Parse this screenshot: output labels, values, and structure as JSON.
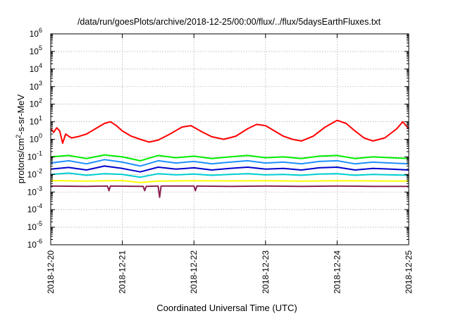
{
  "chart_data": {
    "type": "line",
    "title": "/data/run/goesPlots/archive/2018-12-25/00:00/flux/../flux/5daysEarthFluxes.txt",
    "xlabel": "Coordinated Universal Time (UTC)",
    "ylabel": {
      "base": "protons/cm",
      "sup": "2",
      "rest": "-s-sr-MeV"
    },
    "yscale": "log",
    "ylim": [
      1e-06,
      1000000.0
    ],
    "y_ticks": [
      {
        "value": 1e-06,
        "base": "10",
        "exp": "-6"
      },
      {
        "value": 1e-05,
        "base": "10",
        "exp": "-5"
      },
      {
        "value": 0.0001,
        "base": "10",
        "exp": "-4"
      },
      {
        "value": 0.001,
        "base": "10",
        "exp": "-3"
      },
      {
        "value": 0.01,
        "base": "10",
        "exp": "-2"
      },
      {
        "value": 0.1,
        "base": "10",
        "exp": "-1"
      },
      {
        "value": 1,
        "base": "10",
        "exp": "0"
      },
      {
        "value": 10,
        "base": "10",
        "exp": "1"
      },
      {
        "value": 100,
        "base": "10",
        "exp": "2"
      },
      {
        "value": 1000,
        "base": "10",
        "exp": "3"
      },
      {
        "value": 10000,
        "base": "10",
        "exp": "4"
      },
      {
        "value": 100000,
        "base": "10",
        "exp": "5"
      },
      {
        "value": 1000000,
        "base": "10",
        "exp": "6"
      }
    ],
    "xlim": [
      "2018-12-20",
      "2018-12-25"
    ],
    "x_ticks": [
      "2018-12-20",
      "2018-12-21",
      "2018-12-22",
      "2018-12-23",
      "2018-12-24",
      "2018-12-25"
    ],
    "grid": true,
    "series": [
      {
        "color": "#ff0000",
        "x": [
          "2018-12-20T00:00",
          "2018-12-20T01:00",
          "2018-12-20T02:00",
          "2018-12-20T03:00",
          "2018-12-20T04:00",
          "2018-12-20T05:00",
          "2018-12-20T06:00",
          "2018-12-20T07:00",
          "2018-12-20T09:00",
          "2018-12-20T12:00",
          "2018-12-20T15:00",
          "2018-12-20T18:00",
          "2018-12-20T20:00",
          "2018-12-20T22:00",
          "2018-12-21T00:00",
          "2018-12-21T03:00",
          "2018-12-21T06:00",
          "2018-12-21T09:00",
          "2018-12-21T12:00",
          "2018-12-21T16:00",
          "2018-12-21T20:00",
          "2018-12-21T23:00",
          "2018-12-22T03:00",
          "2018-12-22T06:00",
          "2018-12-22T10:00",
          "2018-12-22T14:00",
          "2018-12-22T18:00",
          "2018-12-22T21:00",
          "2018-12-23T00:00",
          "2018-12-23T03:00",
          "2018-12-23T06:00",
          "2018-12-23T09:00",
          "2018-12-23T12:00",
          "2018-12-23T16:00",
          "2018-12-23T20:00",
          "2018-12-24T00:00",
          "2018-12-24T03:00",
          "2018-12-24T06:00",
          "2018-12-24T09:00",
          "2018-12-24T12:00",
          "2018-12-24T16:00",
          "2018-12-24T20:00",
          "2018-12-24T22:00",
          "2018-12-25T00:00"
        ],
        "values": [
          4,
          2.5,
          4.5,
          3,
          0.6,
          2,
          1.5,
          1.2,
          1.4,
          2,
          4,
          8,
          10,
          6,
          3,
          1.5,
          1,
          0.7,
          0.9,
          2,
          5,
          6,
          2.5,
          1.4,
          1,
          1.5,
          4,
          7,
          6,
          3,
          1.5,
          1,
          0.8,
          1.5,
          5,
          12,
          8,
          3,
          1.2,
          0.8,
          1.2,
          4,
          10,
          4
        ]
      },
      {
        "color": "#00ee00",
        "x": [
          "2018-12-20T00:00",
          "2018-12-20T06:00",
          "2018-12-20T12:00",
          "2018-12-20T18:00",
          "2018-12-21T00:00",
          "2018-12-21T06:00",
          "2018-12-21T12:00",
          "2018-12-21T18:00",
          "2018-12-22T00:00",
          "2018-12-22T06:00",
          "2018-12-22T12:00",
          "2018-12-22T18:00",
          "2018-12-23T00:00",
          "2018-12-23T06:00",
          "2018-12-23T12:00",
          "2018-12-23T18:00",
          "2018-12-24T00:00",
          "2018-12-24T06:00",
          "2018-12-24T12:00",
          "2018-12-24T18:00",
          "2018-12-25T00:00"
        ],
        "values": [
          0.1,
          0.12,
          0.08,
          0.13,
          0.1,
          0.06,
          0.12,
          0.09,
          0.11,
          0.08,
          0.1,
          0.12,
          0.09,
          0.1,
          0.08,
          0.11,
          0.12,
          0.08,
          0.1,
          0.09,
          0.08
        ]
      },
      {
        "color": "#1e90ff",
        "x": [
          "2018-12-20T00:00",
          "2018-12-20T06:00",
          "2018-12-20T12:00",
          "2018-12-20T18:00",
          "2018-12-21T00:00",
          "2018-12-21T06:00",
          "2018-12-21T12:00",
          "2018-12-21T18:00",
          "2018-12-22T00:00",
          "2018-12-22T06:00",
          "2018-12-22T12:00",
          "2018-12-22T18:00",
          "2018-12-23T00:00",
          "2018-12-23T06:00",
          "2018-12-23T12:00",
          "2018-12-23T18:00",
          "2018-12-24T00:00",
          "2018-12-24T06:00",
          "2018-12-24T12:00",
          "2018-12-24T18:00",
          "2018-12-25T00:00"
        ],
        "values": [
          0.045,
          0.06,
          0.04,
          0.07,
          0.05,
          0.03,
          0.06,
          0.045,
          0.055,
          0.04,
          0.05,
          0.06,
          0.045,
          0.05,
          0.04,
          0.055,
          0.06,
          0.04,
          0.05,
          0.045,
          0.04
        ]
      },
      {
        "color": "#0000cd",
        "x": [
          "2018-12-20T00:00",
          "2018-12-20T06:00",
          "2018-12-20T12:00",
          "2018-12-20T18:00",
          "2018-12-21T00:00",
          "2018-12-21T06:00",
          "2018-12-21T12:00",
          "2018-12-21T18:00",
          "2018-12-22T00:00",
          "2018-12-22T06:00",
          "2018-12-22T12:00",
          "2018-12-22T18:00",
          "2018-12-23T00:00",
          "2018-12-23T06:00",
          "2018-12-23T12:00",
          "2018-12-23T18:00",
          "2018-12-24T00:00",
          "2018-12-24T06:00",
          "2018-12-24T12:00",
          "2018-12-24T18:00",
          "2018-12-25T00:00"
        ],
        "values": [
          0.02,
          0.025,
          0.018,
          0.03,
          0.022,
          0.014,
          0.026,
          0.02,
          0.024,
          0.018,
          0.022,
          0.026,
          0.02,
          0.022,
          0.018,
          0.024,
          0.026,
          0.018,
          0.022,
          0.02,
          0.018
        ]
      },
      {
        "color": "#00ced1",
        "x": [
          "2018-12-20T00:00",
          "2018-12-20T06:00",
          "2018-12-20T12:00",
          "2018-12-20T18:00",
          "2018-12-21T00:00",
          "2018-12-21T06:00",
          "2018-12-21T12:00",
          "2018-12-21T18:00",
          "2018-12-22T00:00",
          "2018-12-22T06:00",
          "2018-12-22T12:00",
          "2018-12-22T18:00",
          "2018-12-23T00:00",
          "2018-12-23T06:00",
          "2018-12-23T12:00",
          "2018-12-23T18:00",
          "2018-12-24T00:00",
          "2018-12-24T06:00",
          "2018-12-24T12:00",
          "2018-12-24T18:00",
          "2018-12-25T00:00"
        ],
        "values": [
          0.01,
          0.012,
          0.009,
          0.011,
          0.01,
          0.007,
          0.011,
          0.0095,
          0.0105,
          0.009,
          0.01,
          0.011,
          0.0095,
          0.01,
          0.009,
          0.0105,
          0.011,
          0.009,
          0.01,
          0.0095,
          0.009
        ]
      },
      {
        "color": "#ffff00",
        "x": [
          "2018-12-20T00:00",
          "2018-12-20T12:00",
          "2018-12-21T00:00",
          "2018-12-21T06:00",
          "2018-12-21T12:00",
          "2018-12-22T00:00",
          "2018-12-22T12:00",
          "2018-12-23T00:00",
          "2018-12-23T12:00",
          "2018-12-24T00:00",
          "2018-12-24T12:00",
          "2018-12-25T00:00"
        ],
        "values": [
          0.0045,
          0.0042,
          0.0045,
          0.0035,
          0.0042,
          0.0044,
          0.0043,
          0.0044,
          0.0042,
          0.0044,
          0.0043,
          0.0042
        ]
      },
      {
        "color": "#8b2252",
        "x": [
          "2018-12-20T00:00",
          "2018-12-20T12:00",
          "2018-12-20T19:00",
          "2018-12-20T19:30",
          "2018-12-20T20:00",
          "2018-12-21T07:00",
          "2018-12-21T07:30",
          "2018-12-21T08:00",
          "2018-12-21T12:00",
          "2018-12-21T12:30",
          "2018-12-21T13:00",
          "2018-12-22T00:00",
          "2018-12-22T00:30",
          "2018-12-22T01:00",
          "2018-12-22T12:00",
          "2018-12-23T00:00",
          "2018-12-23T12:00",
          "2018-12-24T00:00",
          "2018-12-24T12:00",
          "2018-12-25T00:00"
        ],
        "values": [
          0.0022,
          0.0021,
          0.0022,
          0.0012,
          0.0022,
          0.0021,
          0.0012,
          0.0021,
          0.0022,
          0.0005,
          0.0022,
          0.0022,
          0.0012,
          0.0022,
          0.0021,
          0.0022,
          0.0021,
          0.0022,
          0.0021,
          0.0021
        ]
      }
    ]
  }
}
